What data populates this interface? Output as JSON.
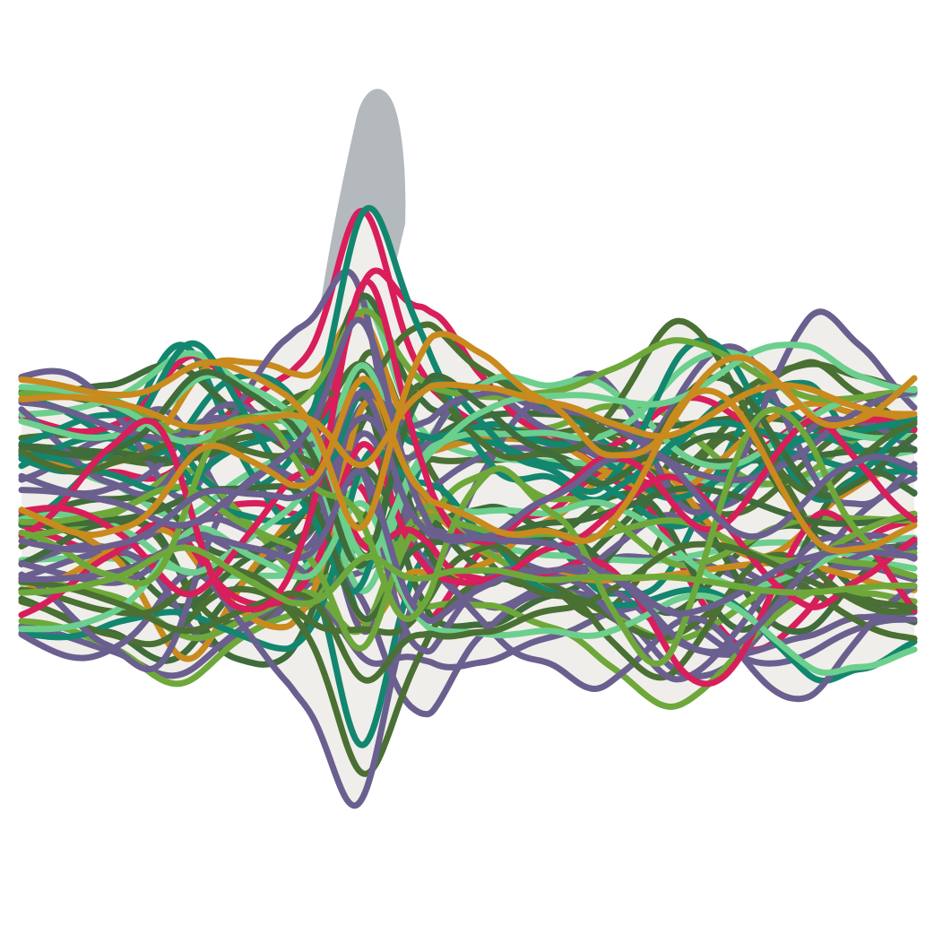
{
  "artwork": {
    "kind": "generative stream art",
    "background_color": "#ffffff",
    "fill_color": "#f0eeea",
    "peak_shadow_color": "#b4b9be",
    "palette": [
      "#d81e5b",
      "#4a7034",
      "#6ccf8e",
      "#13866f",
      "#c98a1e",
      "#6a5f8e",
      "#6ea83a",
      "#3f6c3a"
    ],
    "stroke_count": 64
  }
}
